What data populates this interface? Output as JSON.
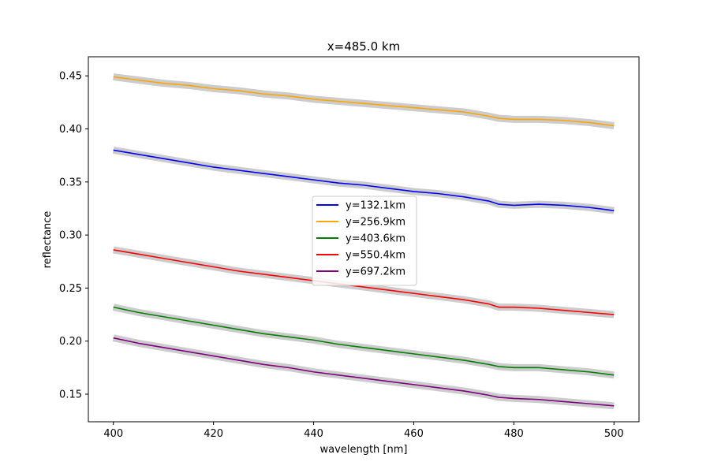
{
  "chart_data": {
    "type": "line",
    "title": "x=485.0 km",
    "xlabel": "wavelength [nm]",
    "ylabel": "reflectance",
    "xlim": [
      395,
      505
    ],
    "ylim": [
      0.124,
      0.468
    ],
    "xticks": [
      400,
      420,
      440,
      460,
      480,
      500
    ],
    "xtick_labels": [
      "400",
      "420",
      "440",
      "460",
      "480",
      "500"
    ],
    "yticks": [
      0.15,
      0.2,
      0.25,
      0.3,
      0.35,
      0.4,
      0.45
    ],
    "ytick_labels": [
      "0.15",
      "0.20",
      "0.25",
      "0.30",
      "0.35",
      "0.40",
      "0.45"
    ],
    "grid": false,
    "legend_position": "center",
    "band_color": "#cccccc",
    "x": [
      400,
      405,
      410,
      415,
      420,
      425,
      430,
      435,
      440,
      445,
      450,
      455,
      460,
      465,
      470,
      475,
      477,
      480,
      485,
      490,
      495,
      500
    ],
    "series": [
      {
        "name": "y=132.1km",
        "color": "#0000ff",
        "values": [
          0.38,
          0.376,
          0.372,
          0.368,
          0.364,
          0.361,
          0.358,
          0.355,
          0.352,
          0.349,
          0.347,
          0.344,
          0.341,
          0.339,
          0.336,
          0.332,
          0.329,
          0.328,
          0.329,
          0.328,
          0.326,
          0.323
        ]
      },
      {
        "name": "y=256.9km",
        "color": "#ffa500",
        "values": [
          0.449,
          0.446,
          0.443,
          0.441,
          0.438,
          0.436,
          0.433,
          0.431,
          0.428,
          0.426,
          0.424,
          0.422,
          0.42,
          0.418,
          0.416,
          0.412,
          0.41,
          0.409,
          0.409,
          0.408,
          0.406,
          0.403
        ]
      },
      {
        "name": "y=403.6km",
        "color": "#008000",
        "values": [
          0.232,
          0.227,
          0.223,
          0.219,
          0.215,
          0.211,
          0.207,
          0.204,
          0.201,
          0.197,
          0.194,
          0.191,
          0.188,
          0.185,
          0.182,
          0.178,
          0.176,
          0.175,
          0.175,
          0.173,
          0.171,
          0.168
        ]
      },
      {
        "name": "y=550.4km",
        "color": "#ff0000",
        "values": [
          0.286,
          0.282,
          0.278,
          0.274,
          0.27,
          0.266,
          0.263,
          0.26,
          0.257,
          0.254,
          0.251,
          0.248,
          0.245,
          0.242,
          0.239,
          0.235,
          0.232,
          0.232,
          0.231,
          0.229,
          0.227,
          0.225
        ]
      },
      {
        "name": "y=697.2km",
        "color": "#800080",
        "values": [
          0.203,
          0.198,
          0.194,
          0.19,
          0.186,
          0.182,
          0.178,
          0.175,
          0.171,
          0.168,
          0.165,
          0.162,
          0.159,
          0.156,
          0.153,
          0.149,
          0.147,
          0.146,
          0.145,
          0.143,
          0.141,
          0.139
        ]
      }
    ]
  }
}
